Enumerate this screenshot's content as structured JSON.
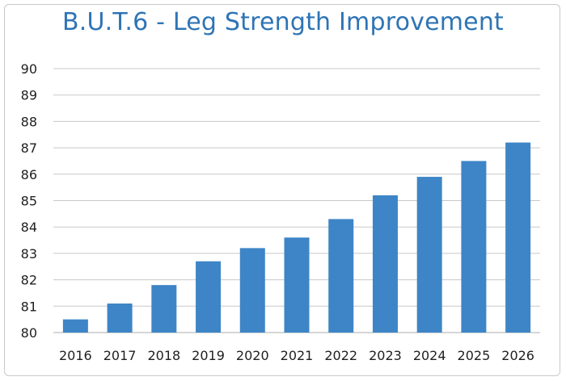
{
  "chart_data": {
    "type": "bar",
    "title": "B.U.T.6 - Leg Strength Improvement",
    "xlabel": "",
    "ylabel": "",
    "categories": [
      "2016",
      "2017",
      "2018",
      "2019",
      "2020",
      "2021",
      "2022",
      "2023",
      "2024",
      "2025",
      "2026"
    ],
    "values": [
      80.5,
      81.1,
      81.8,
      82.7,
      83.2,
      83.6,
      84.3,
      85.2,
      85.9,
      86.5,
      87.2
    ],
    "ylim": [
      80,
      90
    ],
    "yticks": [
      "80",
      "81",
      "82",
      "83",
      "84",
      "85",
      "86",
      "87",
      "88",
      "89",
      "90"
    ],
    "grid": true,
    "bar_color": "#3d85c6",
    "grid_color": "#c8c8c8",
    "title_color": "#2e74b5"
  }
}
